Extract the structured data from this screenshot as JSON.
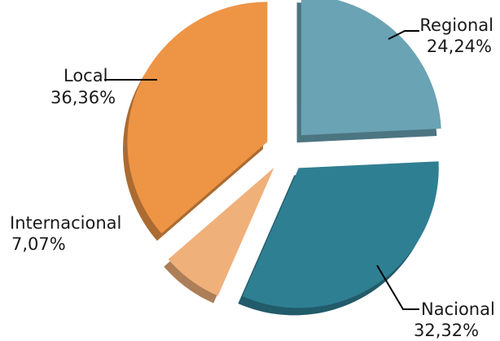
{
  "chart_data": {
    "type": "pie",
    "title": "",
    "start_angle_deg": 0,
    "direction": "clockwise",
    "exploded": true,
    "slices": [
      {
        "name": "Regional",
        "value": 24.24,
        "label_pct": "24,24%",
        "color": "#6AA3B4"
      },
      {
        "name": "Nacional",
        "value": 32.32,
        "label_pct": "32,32%",
        "color": "#2F7F93"
      },
      {
        "name": "Internacional",
        "value": 7.07,
        "label_pct": "7,07%",
        "color": "#F0B07A"
      },
      {
        "name": "Local",
        "value": 36.36,
        "label_pct": "36,36%",
        "color": "#EE9445"
      }
    ]
  }
}
